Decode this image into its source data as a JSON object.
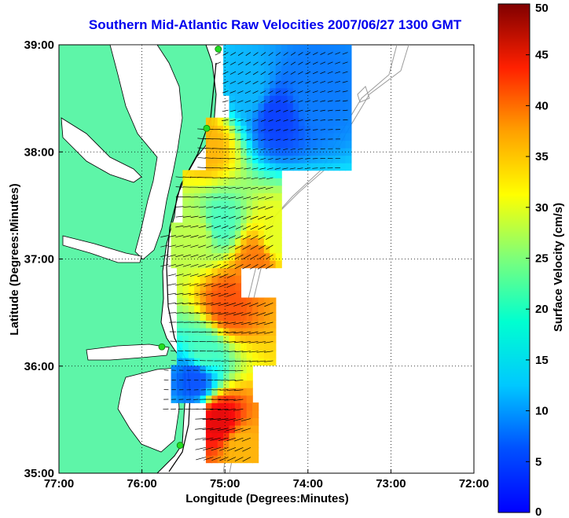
{
  "chart_data": {
    "type": "heatmap",
    "title": "Southern Mid-Atlantic Raw Velocities 2007/06/27 1300 GMT",
    "xlabel": "Longitude (Degrees:Minutes)",
    "ylabel": "Latitude (Degrees:Minutes)",
    "x_ticks": [
      "77:00",
      "76:00",
      "75:00",
      "74:00",
      "73:00",
      "72:00"
    ],
    "y_ticks": [
      "39:00",
      "38:00",
      "37:00",
      "36:00",
      "35:00"
    ],
    "xlim": [
      -77,
      -72
    ],
    "ylim": [
      35,
      39
    ],
    "grid": true,
    "colorbar": {
      "label": "Surface Velocity (cm/s)",
      "ticks": [
        "0",
        "5",
        "10",
        "15",
        "20",
        "25",
        "30",
        "35",
        "40",
        "45",
        "50"
      ],
      "range": [
        0,
        50
      ],
      "colormap": "jet"
    },
    "colors": {
      "land": "#5ef5a8",
      "coastline": "#000000",
      "bathymetry": "#9a9a9a",
      "station": "#22dd22",
      "grid": "#000000"
    },
    "stations": [
      {
        "lon": -75.08,
        "lat": 38.96
      },
      {
        "lon": -75.22,
        "lat": 38.22
      },
      {
        "lon": -75.76,
        "lat": 36.18
      },
      {
        "lon": -75.54,
        "lat": 35.26
      }
    ],
    "velocity_regions": [
      {
        "lon": -75.25,
        "lat": 38.02,
        "speed": 35
      },
      {
        "lon": -74.75,
        "lat": 38.55,
        "speed": 15
      },
      {
        "lon": -74.4,
        "lat": 38.3,
        "speed": 9
      },
      {
        "lon": -74.0,
        "lat": 38.5,
        "speed": 12
      },
      {
        "lon": -74.4,
        "lat": 37.15,
        "speed": 30
      },
      {
        "lon": -74.65,
        "lat": 36.95,
        "speed": 38
      },
      {
        "lon": -75.1,
        "lat": 37.3,
        "speed": 22
      },
      {
        "lon": -75.35,
        "lat": 37.2,
        "speed": 28
      },
      {
        "lon": -75.0,
        "lat": 36.55,
        "speed": 40
      },
      {
        "lon": -75.3,
        "lat": 36.1,
        "speed": 22
      },
      {
        "lon": -75.4,
        "lat": 35.85,
        "speed": 10
      },
      {
        "lon": -75.1,
        "lat": 35.45,
        "speed": 45
      },
      {
        "lon": -74.85,
        "lat": 35.2,
        "speed": 35
      }
    ]
  }
}
